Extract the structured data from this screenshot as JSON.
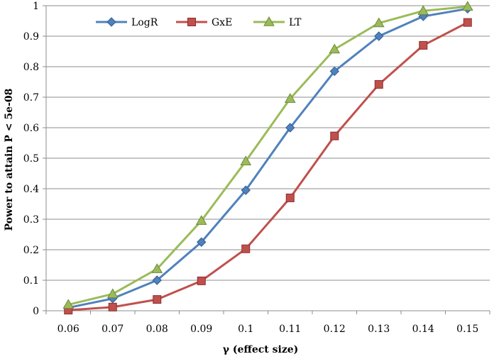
{
  "chart_data": {
    "type": "line",
    "title": "",
    "xlabel": "γ (effect size)",
    "ylabel": "Power to attain P < 5e-08",
    "x": [
      0.06,
      0.07,
      0.08,
      0.09,
      0.1,
      0.11,
      0.12,
      0.13,
      0.14,
      0.15
    ],
    "x_tick_labels": [
      "0.06",
      "0.07",
      "0.08",
      "0.09",
      "0.1",
      "0.11",
      "0.12",
      "0.13",
      "0.14",
      "0.15"
    ],
    "y_ticks": [
      0,
      0.1,
      0.2,
      0.3,
      0.4,
      0.5,
      0.6,
      0.7,
      0.8,
      0.9,
      1
    ],
    "y_tick_labels": [
      "0",
      "0.1",
      "0.2",
      "0.3",
      "0.4",
      "0.5",
      "0.6",
      "0.7",
      "0.8",
      "0.9",
      "1"
    ],
    "ylim": [
      0,
      1
    ],
    "grid": "horizontal",
    "legend_position": "top-left",
    "series": [
      {
        "name": "LogR",
        "color": "#4F81BD",
        "marker": "diamond",
        "values": [
          0.01,
          0.04,
          0.1,
          0.225,
          0.395,
          0.6,
          0.785,
          0.9,
          0.965,
          0.99
        ]
      },
      {
        "name": "GxE",
        "color": "#C0504D",
        "marker": "square",
        "values": [
          0.002,
          0.012,
          0.037,
          0.098,
          0.203,
          0.37,
          0.573,
          0.742,
          0.87,
          0.945
        ]
      },
      {
        "name": "LT",
        "color": "#9BBB59",
        "marker": "triangle",
        "values": [
          0.02,
          0.055,
          0.137,
          0.295,
          0.49,
          0.695,
          0.857,
          0.943,
          0.983,
          0.997
        ]
      }
    ]
  }
}
